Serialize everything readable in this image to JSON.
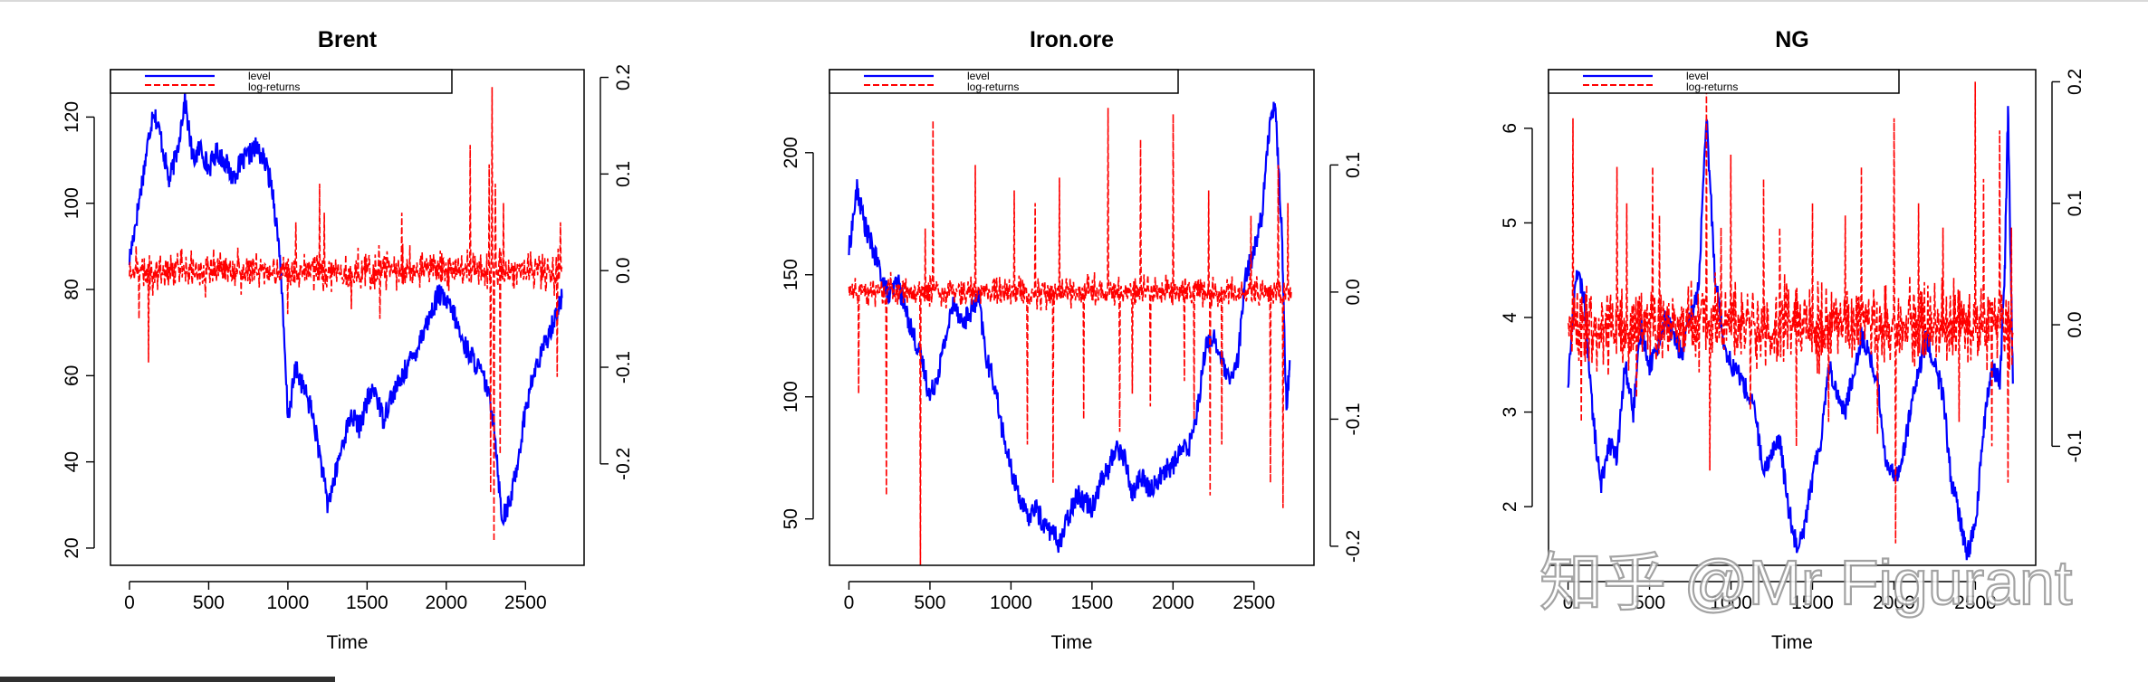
{
  "watermark": "知乎 @Mr Figurant",
  "chart_data": [
    {
      "type": "line",
      "title": "Brent",
      "xlabel": "Time",
      "ylabel": "",
      "y2label": "",
      "xlim": [
        -120,
        2870
      ],
      "xticks": [
        0,
        500,
        1000,
        1500,
        2000,
        2500
      ],
      "ylim": [
        16,
        131
      ],
      "yticks": [
        20,
        40,
        60,
        80,
        100,
        120
      ],
      "y2lim": [
        -0.305,
        0.208
      ],
      "y2ticks": [
        -0.2,
        -0.1,
        0.0,
        0.1,
        0.2
      ],
      "legend": {
        "position": "top-left",
        "entries": [
          "level",
          "log-returns"
        ]
      },
      "series": [
        {
          "name": "level",
          "axis": "left",
          "color": "#0000ff",
          "style": "solid",
          "x": [
            0,
            50,
            100,
            150,
            200,
            250,
            300,
            350,
            400,
            450,
            500,
            550,
            600,
            650,
            700,
            750,
            800,
            850,
            900,
            950,
            1000,
            1050,
            1100,
            1150,
            1200,
            1250,
            1300,
            1350,
            1400,
            1450,
            1500,
            1550,
            1600,
            1650,
            1700,
            1750,
            1800,
            1850,
            1900,
            1950,
            2000,
            2050,
            2100,
            2150,
            2200,
            2250,
            2300,
            2350,
            2400,
            2450,
            2500,
            2550,
            2600,
            2650,
            2700,
            2730
          ],
          "values": [
            87,
            98,
            110,
            122,
            115,
            105,
            112,
            124,
            110,
            113,
            108,
            112,
            110,
            106,
            109,
            111,
            113,
            110,
            104,
            88,
            50,
            62,
            57,
            52,
            42,
            30,
            37,
            45,
            51,
            48,
            54,
            57,
            50,
            55,
            58,
            62,
            65,
            70,
            74,
            79,
            77,
            74,
            68,
            65,
            62,
            58,
            50,
            27,
            30,
            40,
            52,
            60,
            65,
            70,
            75,
            78
          ]
        },
        {
          "name": "log-returns",
          "axis": "right",
          "color": "#ff0000",
          "style": "dashed",
          "base": 0.0,
          "amplitude": 0.028,
          "points": 2735,
          "spikes": [
            {
              "x": 120,
              "v": -0.095
            },
            {
              "x": 60,
              "v": -0.05
            },
            {
              "x": 1000,
              "v": -0.045
            },
            {
              "x": 1400,
              "v": -0.04
            },
            {
              "x": 1580,
              "v": -0.05
            },
            {
              "x": 1720,
              "v": 0.06
            },
            {
              "x": 2150,
              "v": 0.13
            },
            {
              "x": 2270,
              "v": 0.11
            },
            {
              "x": 2280,
              "v": -0.23
            },
            {
              "x": 2290,
              "v": 0.19
            },
            {
              "x": 2300,
              "v": -0.28
            },
            {
              "x": 2310,
              "v": 0.09
            },
            {
              "x": 2340,
              "v": -0.19
            },
            {
              "x": 2360,
              "v": 0.07
            },
            {
              "x": 2700,
              "v": -0.11
            },
            {
              "x": 2720,
              "v": 0.05
            },
            {
              "x": 1200,
              "v": 0.09
            },
            {
              "x": 1230,
              "v": 0.06
            },
            {
              "x": 1050,
              "v": 0.05
            }
          ]
        }
      ]
    },
    {
      "type": "line",
      "title": "Iron.ore",
      "xlabel": "Time",
      "ylabel": "",
      "y2label": "",
      "xlim": [
        -120,
        2870
      ],
      "xticks": [
        0,
        500,
        1000,
        1500,
        2000,
        2500
      ],
      "ylim": [
        31,
        234
      ],
      "yticks": [
        50,
        100,
        150,
        200
      ],
      "y2lim": [
        -0.215,
        0.175
      ],
      "y2ticks": [
        -0.2,
        -0.1,
        0.0,
        0.1
      ],
      "legend": {
        "position": "top-left",
        "entries": [
          "level",
          "log-returns"
        ]
      },
      "series": [
        {
          "name": "level",
          "axis": "left",
          "color": "#0000ff",
          "style": "solid",
          "x": [
            0,
            50,
            100,
            150,
            200,
            250,
            300,
            350,
            400,
            450,
            500,
            550,
            600,
            650,
            700,
            750,
            800,
            850,
            900,
            950,
            1000,
            1050,
            1100,
            1150,
            1200,
            1250,
            1300,
            1350,
            1400,
            1450,
            1500,
            1550,
            1600,
            1650,
            1700,
            1750,
            1800,
            1850,
            1900,
            1950,
            2000,
            2050,
            2100,
            2150,
            2200,
            2250,
            2300,
            2350,
            2400,
            2450,
            2500,
            2550,
            2600,
            2630,
            2670,
            2700,
            2720
          ],
          "values": [
            160,
            185,
            170,
            160,
            150,
            140,
            148,
            135,
            125,
            115,
            100,
            110,
            125,
            140,
            130,
            135,
            140,
            115,
            105,
            85,
            70,
            60,
            50,
            55,
            48,
            45,
            40,
            50,
            60,
            58,
            55,
            65,
            70,
            80,
            75,
            60,
            68,
            62,
            65,
            70,
            72,
            78,
            80,
            95,
            120,
            125,
            115,
            105,
            115,
            150,
            160,
            175,
            215,
            220,
            170,
            95,
            115
          ]
        },
        {
          "name": "log-returns",
          "axis": "right",
          "color": "#ff0000",
          "style": "dashed",
          "base": 0.0,
          "amplitude": 0.016,
          "points": 2735,
          "spikes": [
            {
              "x": 60,
              "v": -0.08
            },
            {
              "x": 230,
              "v": -0.16
            },
            {
              "x": 440,
              "v": -0.22
            },
            {
              "x": 470,
              "v": 0.05
            },
            {
              "x": 520,
              "v": 0.135
            },
            {
              "x": 780,
              "v": 0.1
            },
            {
              "x": 1020,
              "v": 0.08
            },
            {
              "x": 1100,
              "v": -0.12
            },
            {
              "x": 1150,
              "v": 0.07
            },
            {
              "x": 1260,
              "v": -0.15
            },
            {
              "x": 1300,
              "v": 0.09
            },
            {
              "x": 1450,
              "v": -0.1
            },
            {
              "x": 1600,
              "v": 0.145
            },
            {
              "x": 1670,
              "v": -0.11
            },
            {
              "x": 1750,
              "v": -0.08
            },
            {
              "x": 1800,
              "v": 0.12
            },
            {
              "x": 1860,
              "v": -0.09
            },
            {
              "x": 2000,
              "v": 0.14
            },
            {
              "x": 2070,
              "v": -0.07
            },
            {
              "x": 2130,
              "v": -0.1
            },
            {
              "x": 2220,
              "v": 0.08
            },
            {
              "x": 2230,
              "v": -0.16
            },
            {
              "x": 2300,
              "v": -0.12
            },
            {
              "x": 2480,
              "v": 0.06
            },
            {
              "x": 2600,
              "v": -0.15
            },
            {
              "x": 2650,
              "v": 0.1
            },
            {
              "x": 2680,
              "v": -0.17
            },
            {
              "x": 2710,
              "v": 0.07
            }
          ]
        }
      ]
    },
    {
      "type": "line",
      "title": "NG",
      "xlabel": "Time",
      "ylabel": "",
      "y2label": "",
      "xlim": [
        -120,
        2870
      ],
      "xticks": [
        0,
        500,
        1000,
        1500,
        2000,
        2500
      ],
      "ylim": [
        1.38,
        6.62
      ],
      "yticks": [
        2,
        3,
        4,
        5,
        6
      ],
      "y2lim": [
        -0.198,
        0.21
      ],
      "y2ticks": [
        -0.1,
        0.0,
        0.1,
        0.2
      ],
      "legend": {
        "position": "top-left",
        "entries": [
          "level",
          "log-returns"
        ]
      },
      "series": [
        {
          "name": "level",
          "axis": "left",
          "color": "#0000ff",
          "style": "solid",
          "x": [
            0,
            50,
            100,
            150,
            200,
            250,
            300,
            350,
            400,
            450,
            500,
            550,
            600,
            650,
            700,
            750,
            800,
            850,
            900,
            950,
            1000,
            1050,
            1100,
            1150,
            1200,
            1250,
            1300,
            1350,
            1400,
            1450,
            1500,
            1550,
            1600,
            1650,
            1700,
            1750,
            1800,
            1850,
            1900,
            1950,
            2000,
            2050,
            2100,
            2150,
            2200,
            2250,
            2300,
            2350,
            2400,
            2450,
            2500,
            2550,
            2600,
            2650,
            2680,
            2700,
            2730
          ],
          "values": [
            3.3,
            4.5,
            4.2,
            3.0,
            2.2,
            2.7,
            2.5,
            3.5,
            3.0,
            3.9,
            3.5,
            3.7,
            4.0,
            3.8,
            3.6,
            4.0,
            4.3,
            6.1,
            4.5,
            3.8,
            3.5,
            3.4,
            3.2,
            3.0,
            2.3,
            2.6,
            2.7,
            2.0,
            1.6,
            1.8,
            2.3,
            2.7,
            3.5,
            3.2,
            3.0,
            3.4,
            3.8,
            3.6,
            3.3,
            2.5,
            2.3,
            2.5,
            3.0,
            3.4,
            3.8,
            3.5,
            3.2,
            2.3,
            1.9,
            1.5,
            1.8,
            2.8,
            3.5,
            3.3,
            4.5,
            6.2,
            3.3
          ]
        },
        {
          "name": "log-returns",
          "axis": "right",
          "color": "#ff0000",
          "style": "dashed",
          "base": 0.0,
          "amplitude": 0.045,
          "points": 2735,
          "spikes": [
            {
              "x": 30,
              "v": 0.17
            },
            {
              "x": 80,
              "v": -0.08
            },
            {
              "x": 300,
              "v": 0.13
            },
            {
              "x": 360,
              "v": 0.1
            },
            {
              "x": 420,
              "v": -0.06
            },
            {
              "x": 520,
              "v": 0.13
            },
            {
              "x": 560,
              "v": 0.09
            },
            {
              "x": 850,
              "v": 0.2
            },
            {
              "x": 870,
              "v": -0.12
            },
            {
              "x": 940,
              "v": 0.08
            },
            {
              "x": 1000,
              "v": 0.14
            },
            {
              "x": 1120,
              "v": -0.07
            },
            {
              "x": 1200,
              "v": 0.12
            },
            {
              "x": 1300,
              "v": 0.08
            },
            {
              "x": 1400,
              "v": -0.1
            },
            {
              "x": 1500,
              "v": 0.1
            },
            {
              "x": 1600,
              "v": -0.08
            },
            {
              "x": 1700,
              "v": 0.09
            },
            {
              "x": 1800,
              "v": 0.13
            },
            {
              "x": 1900,
              "v": -0.09
            },
            {
              "x": 2000,
              "v": 0.17
            },
            {
              "x": 2010,
              "v": -0.18
            },
            {
              "x": 2150,
              "v": 0.1
            },
            {
              "x": 2300,
              "v": 0.08
            },
            {
              "x": 2400,
              "v": -0.08
            },
            {
              "x": 2500,
              "v": 0.2
            },
            {
              "x": 2550,
              "v": 0.12
            },
            {
              "x": 2600,
              "v": -0.1
            },
            {
              "x": 2650,
              "v": 0.16
            },
            {
              "x": 2700,
              "v": -0.13
            },
            {
              "x": 2720,
              "v": 0.08
            }
          ]
        }
      ]
    }
  ]
}
